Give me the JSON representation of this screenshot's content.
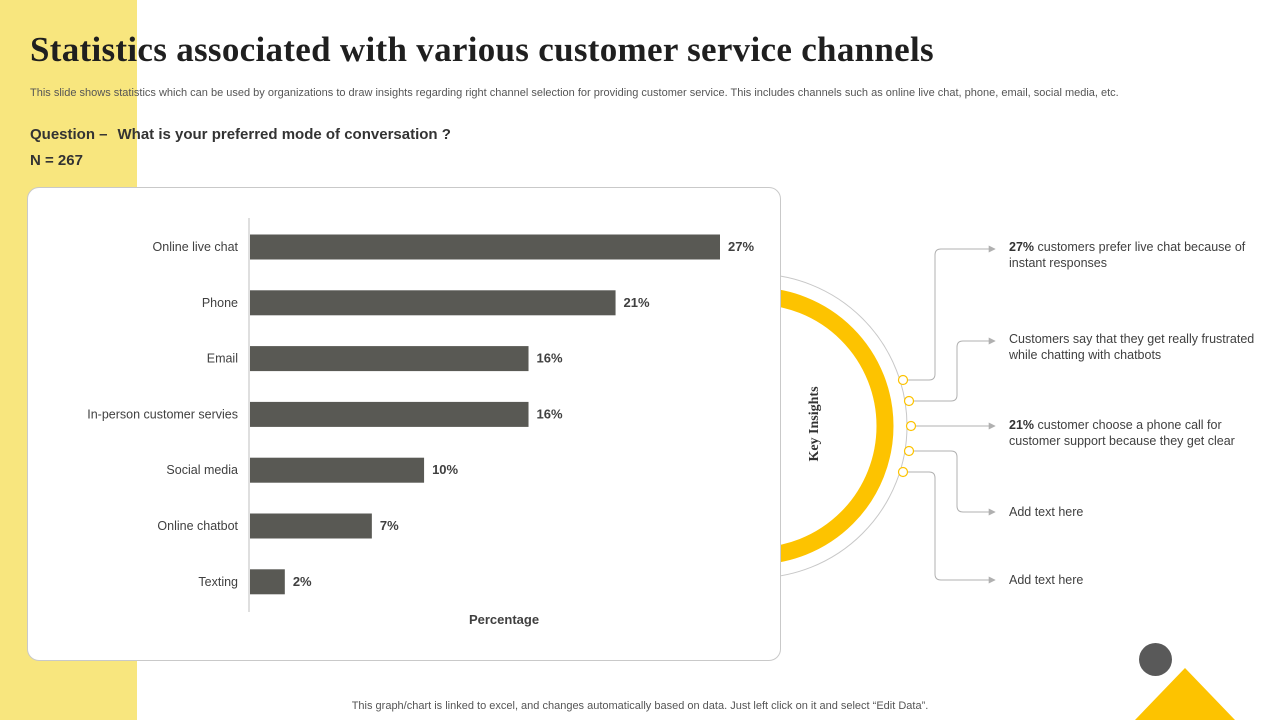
{
  "title": "Statistics associated with various customer service channels",
  "subtitle": "This slide shows statistics which can be used by organizations to draw insights regarding right channel selection for providing customer service. This includes channels such as online live chat, phone, email, social media, etc.",
  "question": {
    "label": "Question –",
    "text": "What is your preferred mode of conversation ?"
  },
  "n_value": "N = 267",
  "chart_data": {
    "type": "bar",
    "orientation": "horizontal",
    "categories": [
      "Online live chat",
      "Phone",
      "Email",
      "In-person customer servies",
      "Social media",
      "Online chatbot",
      "Texting"
    ],
    "values": [
      27,
      21,
      16,
      16,
      10,
      7,
      2
    ],
    "data_labels": [
      "27%",
      "21%",
      "16%",
      "16%",
      "10%",
      "7%",
      "2%"
    ],
    "xlabel": "Percentage",
    "xlim": [
      0,
      30
    ],
    "bar_color": "#595954",
    "grid": false
  },
  "key_insights": {
    "heading": "Key Insights",
    "arc_color": "#fdc300",
    "items": [
      {
        "bold": "27%",
        "text": " customers prefer live chat because of instant responses"
      },
      {
        "bold": "",
        "text": "Customers say that they get really frustrated while chatting with chatbots"
      },
      {
        "bold": "21%",
        "text": " customer choose a phone call for customer support because they get clear"
      },
      {
        "bold": "",
        "text": "Add text here"
      },
      {
        "bold": "",
        "text": "Add text here"
      }
    ]
  },
  "footer": "This graph/chart is linked to excel,  and changes automatically based on data. Just left click on it and select “Edit Data”.",
  "colors": {
    "accent_yellow": "#fdc300",
    "band_yellow": "#f8e67e",
    "dark_gray": "#595959"
  }
}
